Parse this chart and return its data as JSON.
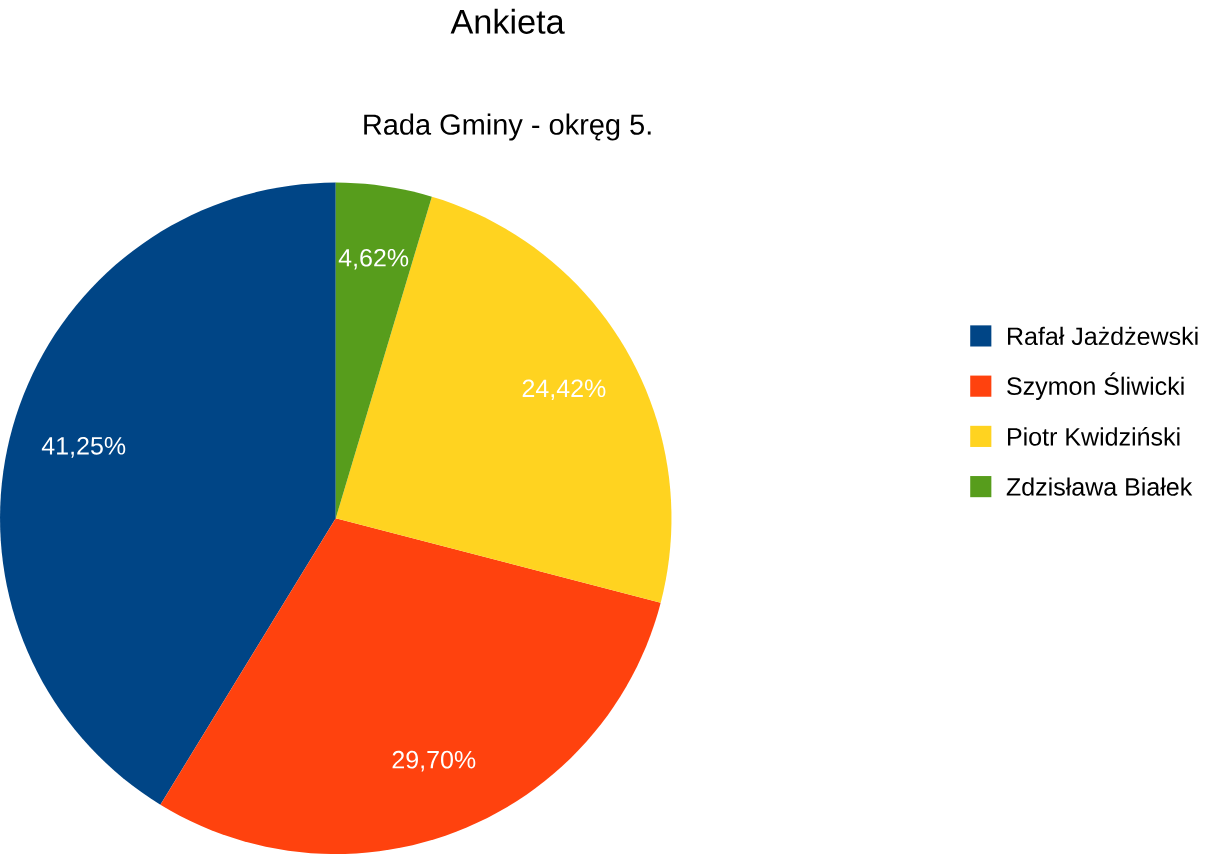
{
  "chart_data": {
    "type": "pie",
    "title": "Ankieta",
    "subtitle": "Rada Gminy - okręg 5.",
    "categories": [
      "Rafał Jażdżewski",
      "Szymon Śliwicki",
      "Piotr Kwidziński",
      "Zdzisława Białek"
    ],
    "values": [
      41.25,
      29.7,
      24.42,
      4.62
    ],
    "colors": [
      "#004586",
      "#ff420e",
      "#ffd320",
      "#579d1c"
    ],
    "value_labels": [
      "41,25%",
      "29,70%",
      "24,42%",
      "4,62%"
    ],
    "legend": "right"
  }
}
